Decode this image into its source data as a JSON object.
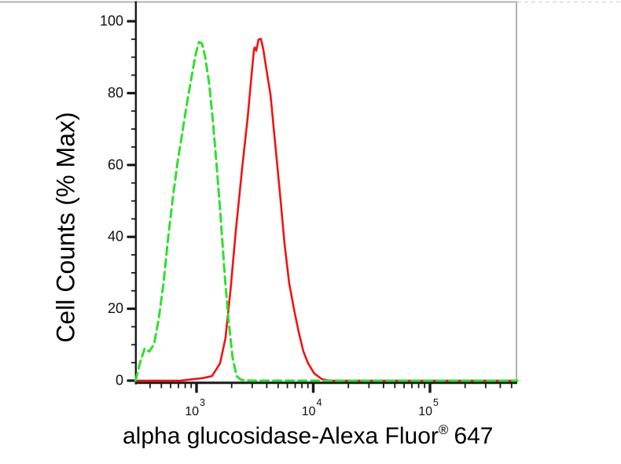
{
  "figure": {
    "ylabel": "Cell Counts (% Max)",
    "xlabel_main": "alpha glucosidase-Alexa Fluor",
    "xlabel_sup": "®",
    "xlabel_suffix": "647"
  },
  "frame": {
    "background": "#ffffff",
    "outer_line_color": "#b0b0b0",
    "outer_dashed_color": "#d9d9d9",
    "axis_color": "#1a1a1a",
    "tick_label_color": "#111111"
  },
  "chart_data": {
    "type": "line",
    "title": "",
    "xlabel": "alpha glucosidase-Alexa Fluor® 647",
    "ylabel": "Cell Counts (% Max)",
    "x_scale": "log",
    "x_range": [
      300,
      560000
    ],
    "ylim": [
      0,
      100
    ],
    "grid": "off",
    "legend": "none",
    "y_major_ticks": [
      0,
      20,
      40,
      60,
      80,
      100
    ],
    "y_minor_step": 5,
    "x_major_ticks": [
      1000,
      10000,
      100000
    ],
    "x_tick_label_base": "10",
    "x_tick_label_exponents": [
      3,
      4,
      5
    ],
    "series": [
      {
        "name": "red solid curve",
        "color": "#f11313",
        "style": "solid",
        "peak_x": 3500,
        "peak_y": 95,
        "points": [
          [
            310,
            0
          ],
          [
            730,
            0
          ],
          [
            930,
            0.4
          ],
          [
            1130,
            0.7
          ],
          [
            1360,
            1.3
          ],
          [
            1590,
            4.8
          ],
          [
            1770,
            11.8
          ],
          [
            1950,
            24.9
          ],
          [
            2170,
            41.7
          ],
          [
            2460,
            59.2
          ],
          [
            2740,
            73
          ],
          [
            2960,
            85
          ],
          [
            3100,
            92
          ],
          [
            3150,
            92.7
          ],
          [
            3250,
            91.8
          ],
          [
            3400,
            94.9
          ],
          [
            3560,
            95.1
          ],
          [
            3730,
            92.2
          ],
          [
            3970,
            86.6
          ],
          [
            4300,
            79.6
          ],
          [
            4710,
            66.4
          ],
          [
            5180,
            52.2
          ],
          [
            5680,
            38
          ],
          [
            6220,
            27.1
          ],
          [
            6840,
            19.9
          ],
          [
            7500,
            13.6
          ],
          [
            8240,
            8.1
          ],
          [
            9040,
            4.8
          ],
          [
            10200,
            2
          ],
          [
            11900,
            0.4
          ],
          [
            14000,
            0
          ],
          [
            560000,
            0
          ]
        ]
      },
      {
        "name": "green dashed curve",
        "color": "#2ee02e",
        "style": "dashed",
        "peak_x": 1050,
        "peak_y": 94,
        "points": [
          [
            300,
            0
          ],
          [
            327,
            4.8
          ],
          [
            360,
            9
          ],
          [
            394,
            8.1
          ],
          [
            433,
            10.1
          ],
          [
            475,
            17.3
          ],
          [
            521,
            27.1
          ],
          [
            573,
            40.2
          ],
          [
            628,
            51.1
          ],
          [
            689,
            61
          ],
          [
            757,
            69.1
          ],
          [
            830,
            77.4
          ],
          [
            912,
            85
          ],
          [
            984,
            90.9
          ],
          [
            1050,
            94.2
          ],
          [
            1114,
            93.8
          ],
          [
            1186,
            90.1
          ],
          [
            1282,
            82.8
          ],
          [
            1384,
            71.9
          ],
          [
            1496,
            58.8
          ],
          [
            1618,
            44.6
          ],
          [
            1746,
            29.3
          ],
          [
            1888,
            16.2
          ],
          [
            2042,
            6.3
          ],
          [
            2203,
            1.3
          ],
          [
            2421,
            0.2
          ],
          [
            2960,
            0
          ],
          [
            560000,
            0
          ]
        ]
      }
    ]
  }
}
